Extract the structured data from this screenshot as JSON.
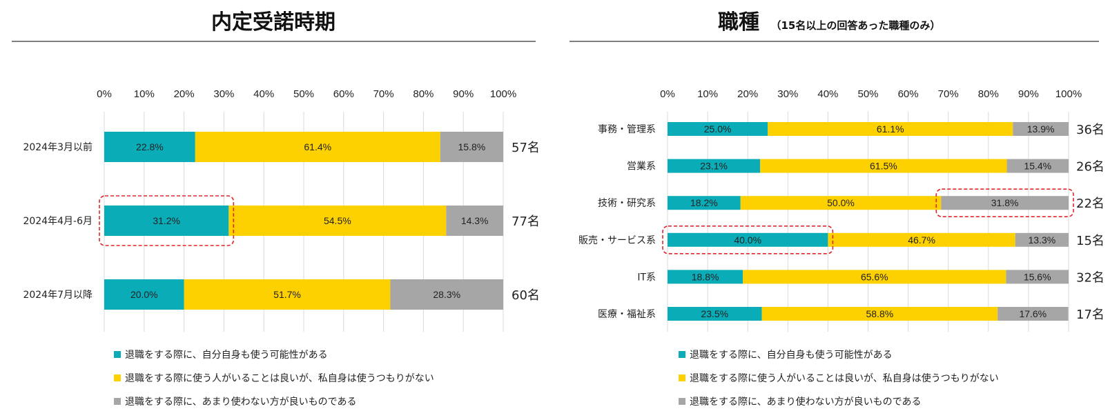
{
  "colors": {
    "teal": "#0aacb8",
    "yellow": "#fdd000",
    "gray": "#a6a6a6",
    "highlight": "#e0242b"
  },
  "chart_data": [
    {
      "type": "bar",
      "orientation": "horizontal-stacked",
      "title": "内定受諾時期",
      "subtitle": "",
      "categories": [
        "2024年3月以前",
        "2024年4月-6月",
        "2024年7月以降"
      ],
      "counts": [
        "57名",
        "77名",
        "60名"
      ],
      "series": [
        {
          "name": "退職をする際に、自分自身も使う可能性がある",
          "values": [
            22.8,
            31.2,
            20.0
          ]
        },
        {
          "name": "退職をする際に使う人がいることは良いが、私自身は使うつもりがない",
          "values": [
            61.4,
            54.5,
            51.7
          ]
        },
        {
          "name": "退職をする際に、あまり使わない方が良いものである",
          "values": [
            15.8,
            14.3,
            28.3
          ]
        }
      ],
      "xlim": [
        0,
        100
      ],
      "ticks": [
        "0%",
        "10%",
        "20%",
        "30%",
        "40%",
        "50%",
        "60%",
        "70%",
        "80%",
        "90%",
        "100%"
      ],
      "highlights": [
        {
          "category": 1,
          "series": 0
        }
      ]
    },
    {
      "type": "bar",
      "orientation": "horizontal-stacked",
      "title": "職種",
      "subtitle": "（15名以上の回答あった職種のみ）",
      "categories": [
        "事務・管理系",
        "営業系",
        "技術・研究系",
        "販売・サービス系",
        "IT系",
        "医療・福祉系"
      ],
      "counts": [
        "36名",
        "26名",
        "22名",
        "15名",
        "32名",
        "17名"
      ],
      "series": [
        {
          "name": "退職をする際に、自分自身も使う可能性がある",
          "values": [
            25.0,
            23.1,
            18.2,
            40.0,
            18.8,
            23.5
          ]
        },
        {
          "name": "退職をする際に使う人がいることは良いが、私自身は使うつもりがない",
          "values": [
            61.1,
            61.5,
            50.0,
            46.7,
            65.6,
            58.8
          ]
        },
        {
          "name": "退職をする際に、あまり使わない方が良いものである",
          "values": [
            13.9,
            15.4,
            31.8,
            13.3,
            15.6,
            17.6
          ]
        }
      ],
      "xlim": [
        0,
        100
      ],
      "ticks": [
        "0%",
        "10%",
        "20%",
        "30%",
        "40%",
        "50%",
        "60%",
        "70%",
        "80%",
        "90%",
        "100%"
      ],
      "highlights": [
        {
          "category": 2,
          "series": 2
        },
        {
          "category": 3,
          "series": 0
        }
      ]
    }
  ]
}
